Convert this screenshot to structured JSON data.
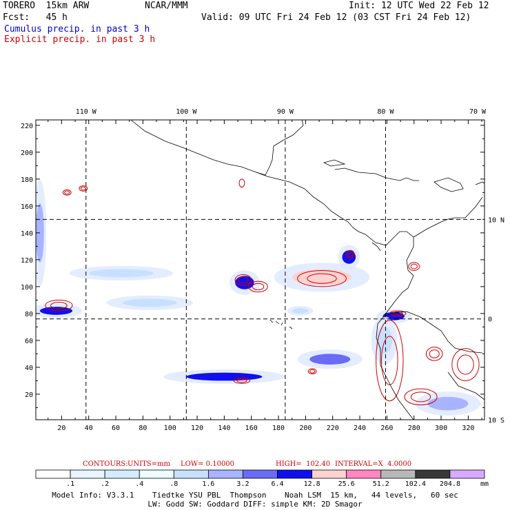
{
  "header": {
    "model_title": "TORERO  15km ARW",
    "org": "NCAR/MMM",
    "init": "Init: 12 UTC Wed 22 Feb 12",
    "fcst": "Fcst:   45 h",
    "valid": "Valid: 09 UTC Fri 24 Feb 12 (03 CST Fri 24 Feb 12)",
    "field1": "Cumulus precip. in past 3 h",
    "field2": "Explicit precip. in past 3 h"
  },
  "colors": {
    "cumulus": "#0000cc",
    "explicit": "#cc0000",
    "grid": "#000000",
    "coast": "#000000"
  },
  "chart_data": {
    "type": "heatmap",
    "x_grid_ticks": [
      "20",
      "40",
      "60",
      "80",
      "100",
      "120",
      "140",
      "160",
      "180",
      "200",
      "220",
      "240",
      "260",
      "280",
      "300",
      "320"
    ],
    "y_grid_ticks": [
      "20",
      "40",
      "60",
      "80",
      "100",
      "120",
      "140",
      "160",
      "180",
      "200",
      "220"
    ],
    "x_range": [
      1,
      332
    ],
    "y_range": [
      1,
      224
    ],
    "lon_labels": [
      "110 W",
      "100 W",
      "90 W",
      "80 W",
      "70 W"
    ],
    "lat_labels": [
      "10 N",
      "0",
      "10 S"
    ],
    "lon_lines_grid_x": [
      38,
      112,
      185,
      259
    ],
    "lat_lines_grid_y": [
      150,
      76
    ],
    "cumulus_areas": [
      {
        "x": 16,
        "y": 82,
        "rx": 12,
        "ry": 3,
        "level": 6.4
      },
      {
        "x": 85,
        "y": 88,
        "rx": 20,
        "ry": 3,
        "level": 0.8
      },
      {
        "x": 155,
        "y": 103,
        "rx": 7,
        "ry": 5,
        "level": 6.4
      },
      {
        "x": 212,
        "y": 107,
        "rx": 22,
        "ry": 6,
        "level": 12.8
      },
      {
        "x": 232,
        "y": 122,
        "rx": 5,
        "ry": 5,
        "level": 6.4
      },
      {
        "x": 140,
        "y": 33,
        "rx": 28,
        "ry": 3,
        "level": 6.4
      },
      {
        "x": 218,
        "y": 46,
        "rx": 15,
        "ry": 4,
        "level": 3.2
      },
      {
        "x": 305,
        "y": 13,
        "rx": 15,
        "ry": 5,
        "level": 1.6
      },
      {
        "x": 4,
        "y": 140,
        "rx": 3,
        "ry": 22,
        "level": 1.6
      },
      {
        "x": 64,
        "y": 110,
        "rx": 24,
        "ry": 3,
        "level": 0.8
      },
      {
        "x": 196,
        "y": 82,
        "rx": 6,
        "ry": 2,
        "level": 0.8
      },
      {
        "x": 265,
        "y": 78,
        "rx": 8,
        "ry": 3,
        "level": 6.4
      },
      {
        "x": 258,
        "y": 60,
        "rx": 6,
        "ry": 10,
        "level": 0.8
      }
    ],
    "explicit_areas": [
      {
        "x": 18,
        "y": 86,
        "rx": 10,
        "ry": 4
      },
      {
        "x": 24,
        "y": 170,
        "rx": 3,
        "ry": 2
      },
      {
        "x": 36,
        "y": 173,
        "rx": 3,
        "ry": 2
      },
      {
        "x": 153,
        "y": 177,
        "rx": 2,
        "ry": 3
      },
      {
        "x": 154,
        "y": 105,
        "rx": 6,
        "ry": 4
      },
      {
        "x": 165,
        "y": 100,
        "rx": 7,
        "ry": 4
      },
      {
        "x": 212,
        "y": 106,
        "rx": 18,
        "ry": 6
      },
      {
        "x": 233,
        "y": 124,
        "rx": 3,
        "ry": 3
      },
      {
        "x": 280,
        "y": 115,
        "rx": 4,
        "ry": 3
      },
      {
        "x": 268,
        "y": 80,
        "rx": 6,
        "ry": 2
      },
      {
        "x": 153,
        "y": 30,
        "rx": 6,
        "ry": 2
      },
      {
        "x": 205,
        "y": 37,
        "rx": 3,
        "ry": 2
      },
      {
        "x": 262,
        "y": 45,
        "rx": 10,
        "ry": 30
      },
      {
        "x": 318,
        "y": 42,
        "rx": 10,
        "ry": 12
      },
      {
        "x": 295,
        "y": 50,
        "rx": 6,
        "ry": 5
      },
      {
        "x": 285,
        "y": 18,
        "rx": 12,
        "ry": 6
      }
    ]
  },
  "contour_info": {
    "label": "CONTOURS:",
    "units": "UNITS=mm",
    "low": "LOW= 0.10000",
    "high": "HIGH=  102.40",
    "interval": "INTERVAL=X  4.0000"
  },
  "legend": {
    "labels": [
      ".1",
      ".2",
      ".4",
      ".8",
      "1.6",
      "3.2",
      "6.4",
      "12.8",
      "25.6",
      "51.2",
      "102.4",
      "204.8"
    ],
    "unit": "mm",
    "colors": [
      "#ffffff",
      "#e8f4ff",
      "#d4ecff",
      "#eefcff",
      "#c8e0ff",
      "#a8b4ff",
      "#6a6cf6",
      "#1010ee",
      "#ffd2d2",
      "#ff86c0",
      "#b8b8b8",
      "#383838",
      "#d8aaff"
    ]
  },
  "footer": {
    "line1": "Model Info: V3.3.1    Tiedtke YSU PBL  Thompson    Noah LSM  15 km,   44 levels,   60 sec",
    "line2": "LW: Godd SW: Goddard DIFF: simple KM: 2D Smagor"
  }
}
